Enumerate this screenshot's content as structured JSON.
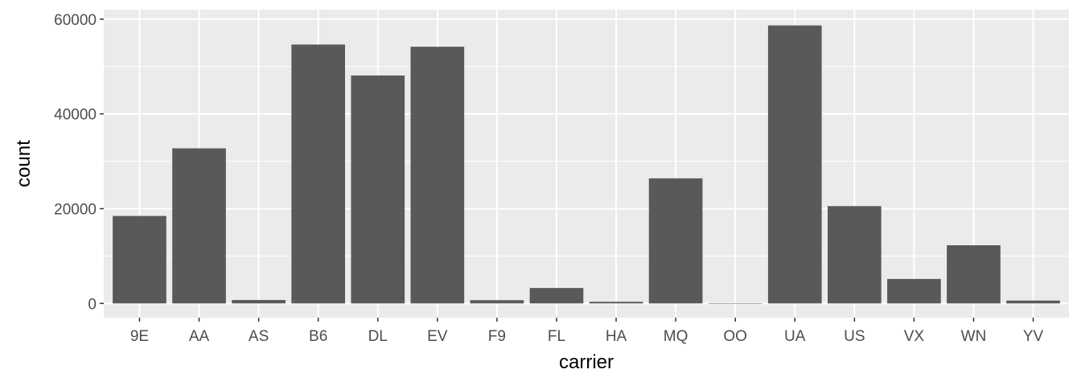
{
  "chart_data": {
    "type": "bar",
    "title": "",
    "xlabel": "carrier",
    "ylabel": "count",
    "categories": [
      "9E",
      "AA",
      "AS",
      "B6",
      "DL",
      "EV",
      "F9",
      "FL",
      "HA",
      "MQ",
      "OO",
      "UA",
      "US",
      "VX",
      "WN",
      "YV"
    ],
    "values": [
      18460,
      32729,
      714,
      54635,
      48110,
      54173,
      685,
      3260,
      342,
      26397,
      32,
      58665,
      20536,
      5162,
      12275,
      601
    ],
    "ylim": [
      -3000,
      62000
    ],
    "yticks": [
      0,
      20000,
      40000,
      60000
    ],
    "ytick_labels": [
      "0",
      "20000",
      "40000",
      "60000"
    ],
    "grid": true,
    "colors": {
      "bar": "#595959",
      "panel": "#EBEBEB",
      "grid": "#FFFFFF",
      "text": "#4D4D4D"
    }
  }
}
